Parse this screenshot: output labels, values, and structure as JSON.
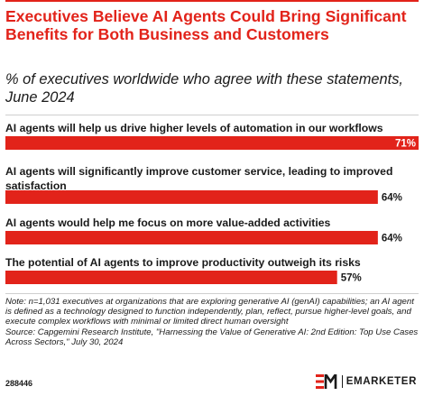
{
  "header": {
    "title": "Executives Believe AI Agents Could Bring Significant Benefits for Both Business and Customers",
    "subtitle": "% of executives worldwide who agree with these statements, June 2024"
  },
  "chart_data": {
    "type": "bar",
    "orientation": "horizontal",
    "categories": [
      "AI agents will help us drive higher levels of automation in our workflows",
      "AI agents will significantly improve customer service, leading to improved satisfaction",
      "AI agents would help me focus on more value-added activities",
      "The potential of AI agents to improve productivity outweigh its risks"
    ],
    "values": [
      71,
      64,
      64,
      57
    ],
    "value_labels": [
      "71%",
      "64%",
      "64%",
      "57%"
    ],
    "xlim": [
      0,
      71
    ],
    "colors": {
      "bar": "#e2231a",
      "label_inside": "#ffffff",
      "label_outside": "#1a1a1a"
    }
  },
  "footer": {
    "note": "Note: n=1,031 executives at organizations that are exploring generative AI (genAI) capabilities; an AI agent is defined as a technology designed to function independently, plan, reflect, pursue higher-level goals, and execute complex workflows with minimal or limited direct human oversight",
    "source": "Source: Capgemini Research Institute, \"Harnessing the Value of Generative AI: 2nd Edition: Top Use Cases Across Sectors,\" July 30, 2024",
    "chart_id": "288446",
    "brand": "EMARKETER"
  }
}
